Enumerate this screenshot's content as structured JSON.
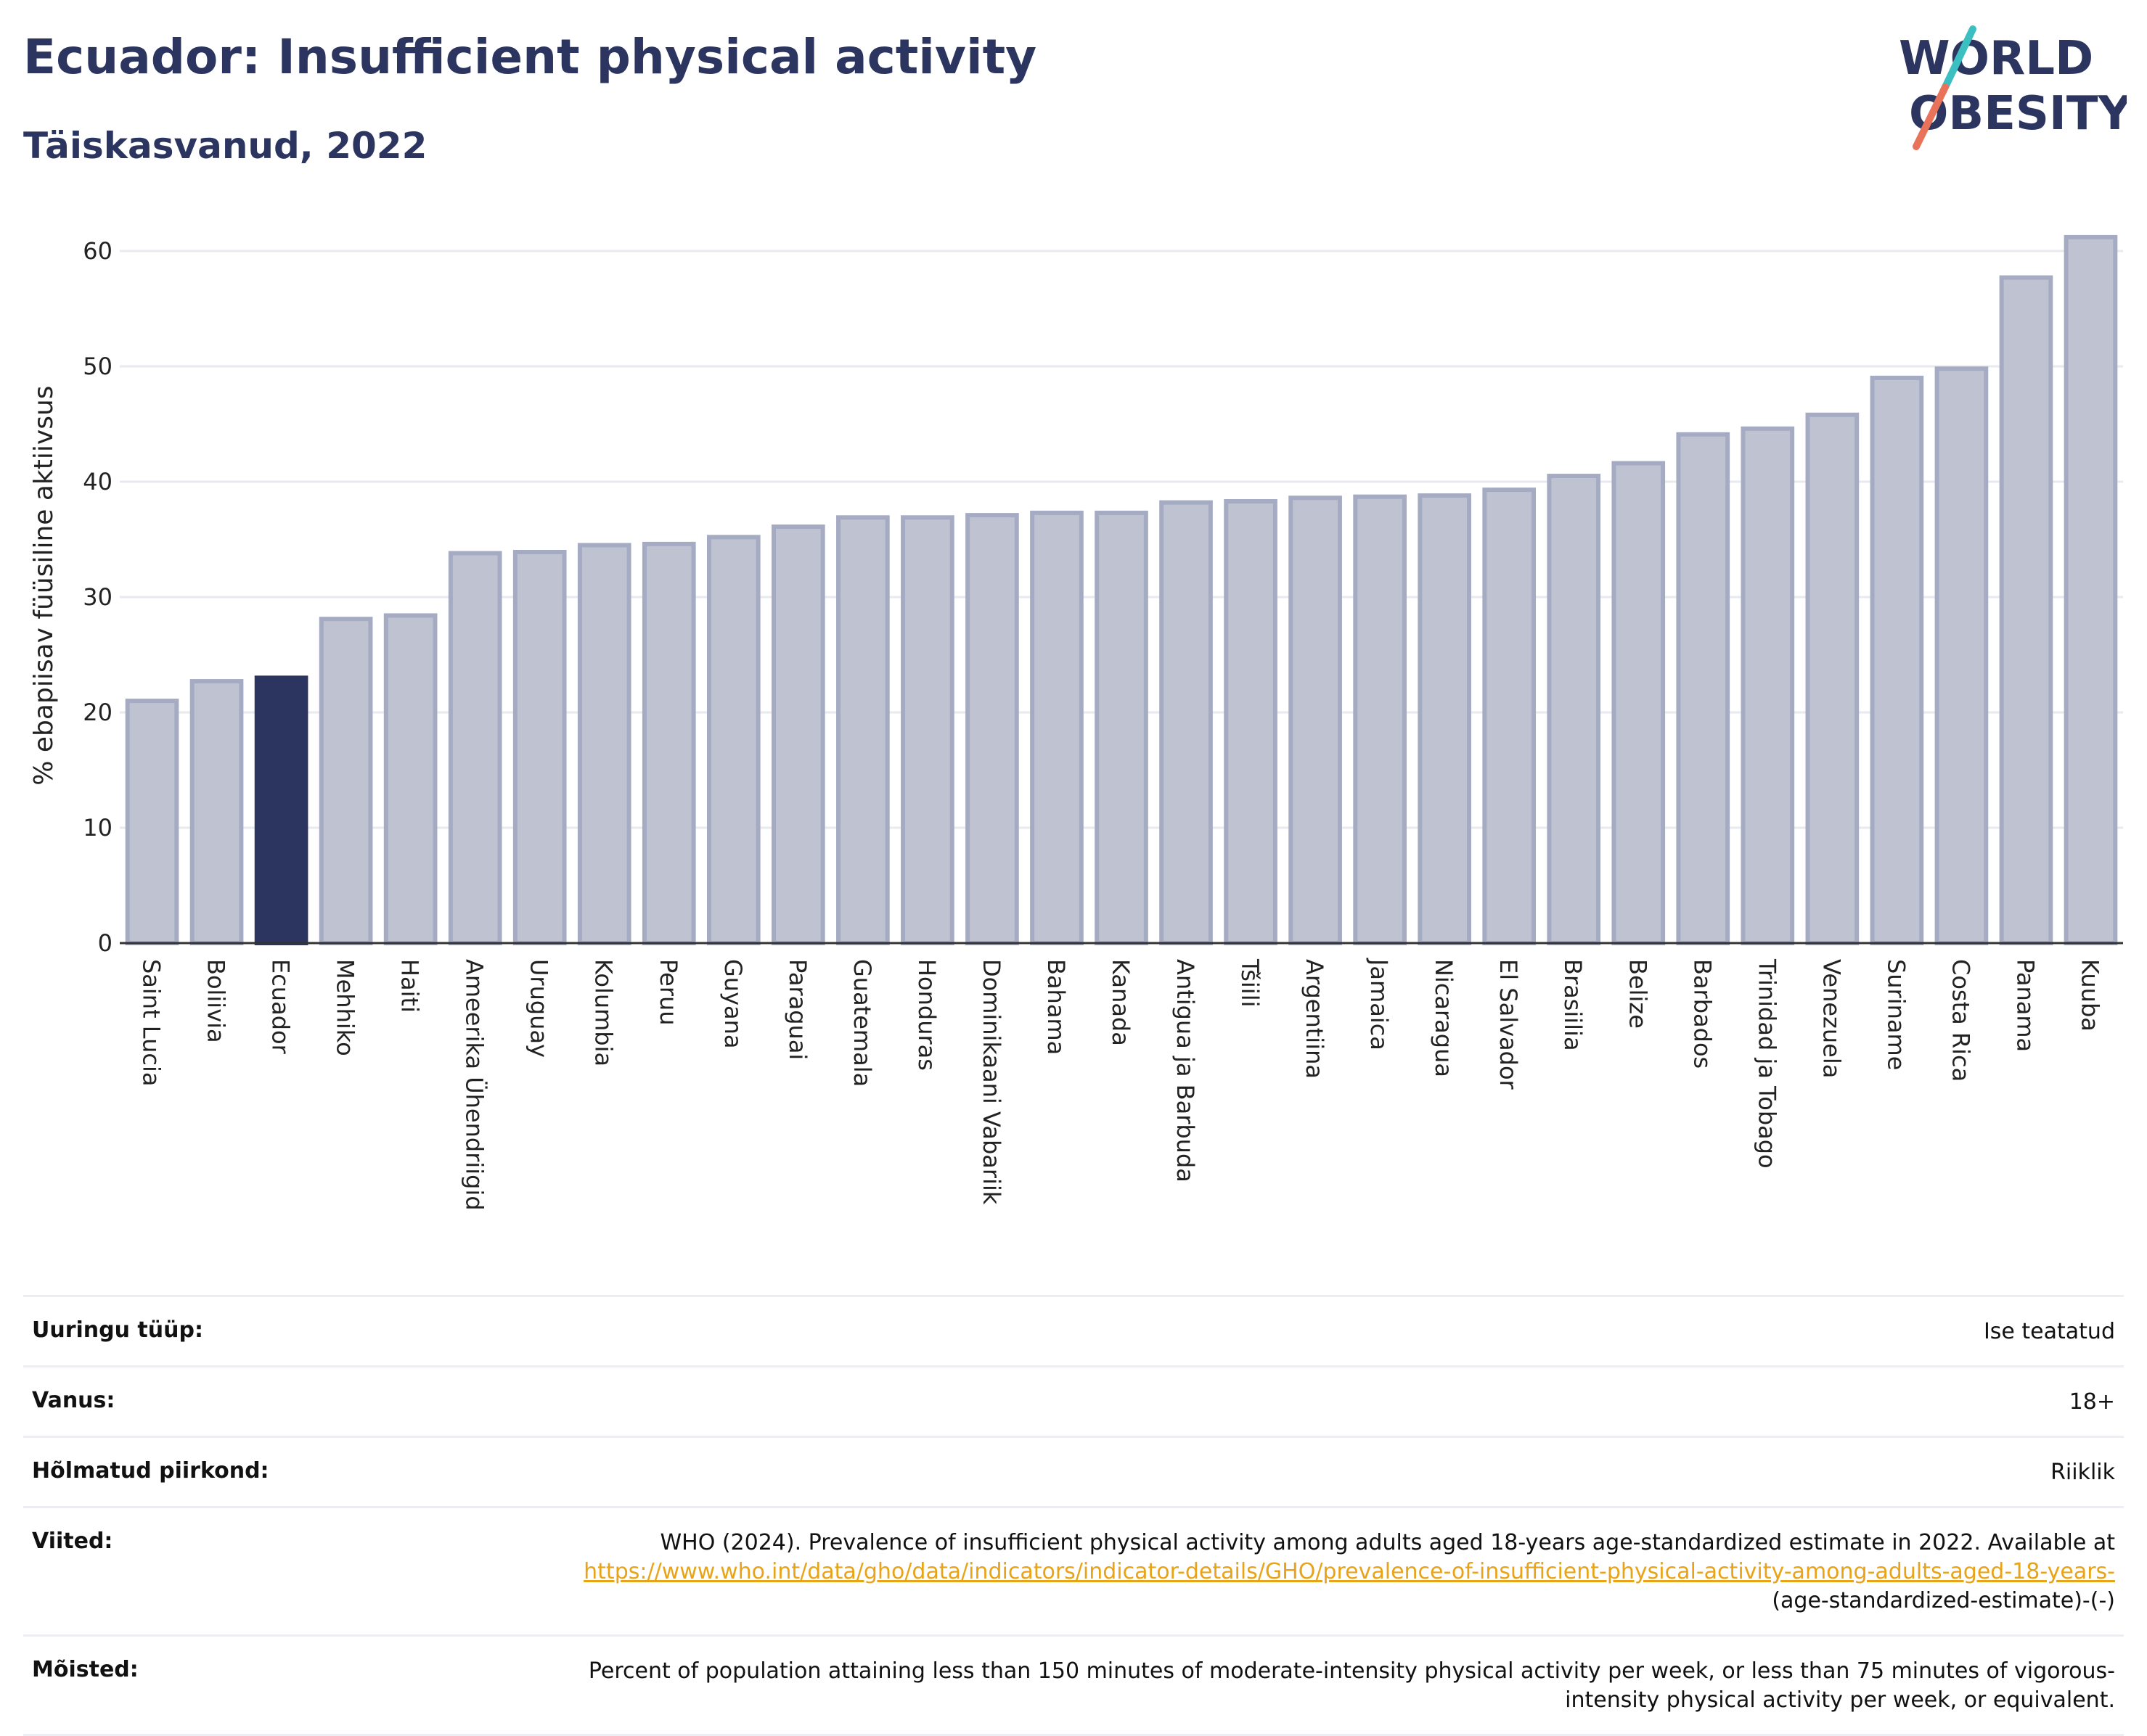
{
  "header": {
    "title": "Ecuador: Insufficient physical activity",
    "subtitle": "Täiskasvanud, 2022"
  },
  "logo": {
    "line1": "WORLD",
    "line2": "OBESITY",
    "colors": {
      "text": "#2b3560",
      "slash_top": "#3cbfc0",
      "slash_bottom": "#e8735a"
    }
  },
  "colors": {
    "bar": "#bfc3d1",
    "bar_stroke": "#a5abc3",
    "highlight": "#2b3560",
    "grid": "#e8eaf0",
    "axis": "#333333",
    "link": "#e8a317"
  },
  "chart_data": {
    "type": "bar",
    "title": "Ecuador: Insufficient physical activity",
    "subtitle": "Täiskasvanud, 2022",
    "ylabel": "% ebapiisav füüsiline aktiivsus",
    "xlabel": "",
    "ylim": [
      0,
      62
    ],
    "yticks": [
      0,
      10,
      20,
      30,
      40,
      50,
      60
    ],
    "grid": true,
    "highlight": "Ecuador",
    "categories": [
      "Saint Lucia",
      "Boliivia",
      "Ecuador",
      "Mehhiko",
      "Haiti",
      "Ameerika Ühendriigid",
      "Uruguay",
      "Kolumbia",
      "Peruu",
      "Guyana",
      "Paraguai",
      "Guatemala",
      "Honduras",
      "Dominikaani Vabariik",
      "Bahama",
      "Kanada",
      "Antigua ja Barbuda",
      "Tšiili",
      "Argentiina",
      "Jamaica",
      "Nicaragua",
      "El Salvador",
      "Brasiilia",
      "Belize",
      "Barbados",
      "Trinidad ja Tobago",
      "Venezuela",
      "Suriname",
      "Costa Rica",
      "Panama",
      "Kuuba"
    ],
    "values": [
      21.0,
      22.7,
      23.0,
      28.1,
      28.4,
      33.8,
      33.9,
      34.5,
      34.6,
      35.2,
      36.1,
      36.9,
      36.9,
      37.1,
      37.3,
      37.3,
      38.2,
      38.3,
      38.6,
      38.7,
      38.8,
      39.3,
      40.5,
      41.6,
      44.1,
      44.6,
      45.8,
      49.0,
      49.8,
      57.7,
      61.2
    ]
  },
  "meta": {
    "rows": [
      {
        "key": "Uuringu tüüp:",
        "value": "Ise teatatud"
      },
      {
        "key": "Vanus:",
        "value": "18+"
      },
      {
        "key": "Hõlmatud piirkond:",
        "value": "Riiklik"
      }
    ],
    "references": {
      "key": "Viited:",
      "text": "WHO (2024). Prevalence of insufficient physical activity among adults aged 18-years age-standardized estimate in 2022. Available at",
      "link": "https://www.who.int/data/gho/data/indicators/indicator-details/GHO/prevalence-of-insufficient-physical-activity-among-adults-aged-18-years-",
      "suffix": "(age-standardized-estimate)-(-)"
    },
    "definitions": {
      "key": "Mõisted:",
      "value": "Percent of population attaining less than 150 minutes of moderate-intensity physical activity per week, or less than 75 minutes of vigorous-intensity physical activity per week, or equivalent."
    }
  }
}
